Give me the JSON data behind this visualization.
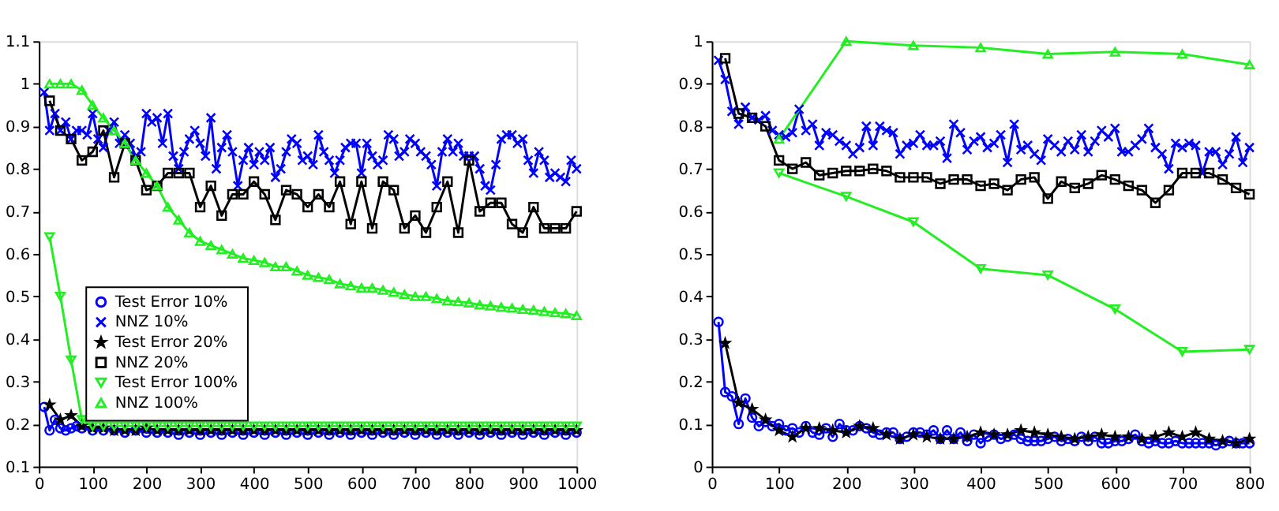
{
  "chart_data": [
    {
      "type": "line",
      "xlim": [
        0,
        1000
      ],
      "ylim": [
        0.1,
        1.1
      ],
      "xticks": [
        0,
        100,
        200,
        300,
        400,
        500,
        600,
        700,
        800,
        900,
        1000
      ],
      "yticks": [
        0.1,
        0.2,
        0.3,
        0.4,
        0.5,
        0.6,
        0.7,
        0.8,
        0.9,
        1,
        1.1
      ],
      "grid": false,
      "legend": "bottom left",
      "series": [
        {
          "name": "Test Error 10%",
          "color": "#0000ff",
          "marker": "circle",
          "x": [
            10,
            20,
            30,
            40,
            50,
            60,
            70,
            80,
            100,
            120,
            140,
            160,
            180,
            200,
            220,
            240,
            260,
            280,
            300,
            320,
            340,
            360,
            380,
            400,
            420,
            440,
            460,
            480,
            500,
            520,
            540,
            560,
            580,
            600,
            620,
            640,
            660,
            680,
            700,
            720,
            740,
            760,
            780,
            800,
            820,
            840,
            860,
            880,
            900,
            920,
            940,
            960,
            980,
            1000
          ],
          "values": [
            0.24,
            0.185,
            0.21,
            0.19,
            0.185,
            0.19,
            0.195,
            0.19,
            0.185,
            0.185,
            0.185,
            0.18,
            0.185,
            0.18,
            0.18,
            0.18,
            0.175,
            0.18,
            0.175,
            0.18,
            0.175,
            0.18,
            0.175,
            0.18,
            0.175,
            0.18,
            0.175,
            0.18,
            0.175,
            0.18,
            0.175,
            0.18,
            0.175,
            0.18,
            0.175,
            0.18,
            0.175,
            0.18,
            0.175,
            0.18,
            0.175,
            0.18,
            0.175,
            0.18,
            0.175,
            0.18,
            0.175,
            0.18,
            0.175,
            0.18,
            0.175,
            0.18,
            0.175,
            0.18
          ]
        },
        {
          "name": "NNZ 10%",
          "color": "#0000ff",
          "marker": "cross",
          "x": [
            10,
            20,
            30,
            40,
            50,
            60,
            70,
            80,
            90,
            100,
            110,
            120,
            130,
            140,
            150,
            160,
            170,
            180,
            190,
            200,
            210,
            220,
            230,
            240,
            250,
            260,
            270,
            280,
            290,
            300,
            310,
            320,
            330,
            340,
            350,
            360,
            370,
            380,
            390,
            400,
            410,
            420,
            430,
            440,
            450,
            460,
            470,
            480,
            490,
            500,
            510,
            520,
            530,
            540,
            550,
            560,
            570,
            580,
            590,
            600,
            610,
            620,
            630,
            640,
            650,
            660,
            670,
            680,
            690,
            700,
            710,
            720,
            730,
            740,
            750,
            760,
            770,
            780,
            790,
            800,
            810,
            820,
            830,
            840,
            850,
            860,
            870,
            880,
            890,
            900,
            910,
            920,
            930,
            940,
            950,
            960,
            970,
            980,
            990,
            1000
          ],
          "values": [
            0.98,
            0.89,
            0.93,
            0.89,
            0.91,
            0.87,
            0.89,
            0.89,
            0.88,
            0.93,
            0.87,
            0.85,
            0.89,
            0.91,
            0.86,
            0.88,
            0.86,
            0.83,
            0.84,
            0.93,
            0.91,
            0.92,
            0.86,
            0.93,
            0.83,
            0.8,
            0.84,
            0.87,
            0.89,
            0.86,
            0.83,
            0.92,
            0.8,
            0.85,
            0.88,
            0.84,
            0.76,
            0.82,
            0.85,
            0.81,
            0.84,
            0.82,
            0.85,
            0.78,
            0.8,
            0.84,
            0.87,
            0.86,
            0.82,
            0.83,
            0.81,
            0.88,
            0.84,
            0.82,
            0.79,
            0.82,
            0.85,
            0.86,
            0.86,
            0.79,
            0.86,
            0.83,
            0.81,
            0.82,
            0.88,
            0.87,
            0.83,
            0.84,
            0.87,
            0.86,
            0.84,
            0.83,
            0.81,
            0.76,
            0.84,
            0.87,
            0.84,
            0.86,
            0.83,
            0.83,
            0.83,
            0.8,
            0.76,
            0.75,
            0.81,
            0.87,
            0.88,
            0.88,
            0.86,
            0.87,
            0.82,
            0.79,
            0.84,
            0.82,
            0.78,
            0.79,
            0.78,
            0.77,
            0.82,
            0.8
          ]
        },
        {
          "name": "Test Error 20%",
          "color": "#000000",
          "marker": "star",
          "x": [
            20,
            40,
            60,
            80,
            100,
            120,
            140,
            160,
            180,
            200,
            220,
            240,
            260,
            280,
            300,
            320,
            340,
            360,
            380,
            400,
            420,
            440,
            460,
            480,
            500,
            520,
            540,
            560,
            580,
            600,
            620,
            640,
            660,
            680,
            700,
            720,
            740,
            760,
            780,
            800,
            820,
            840,
            860,
            880,
            900,
            920,
            940,
            960,
            980,
            1000
          ],
          "values": [
            0.245,
            0.21,
            0.22,
            0.195,
            0.19,
            0.19,
            0.185,
            0.185,
            0.185,
            0.19,
            0.185,
            0.185,
            0.185,
            0.185,
            0.185,
            0.185,
            0.185,
            0.185,
            0.185,
            0.185,
            0.185,
            0.185,
            0.185,
            0.185,
            0.185,
            0.185,
            0.185,
            0.185,
            0.185,
            0.185,
            0.185,
            0.185,
            0.185,
            0.185,
            0.185,
            0.185,
            0.185,
            0.185,
            0.185,
            0.185,
            0.185,
            0.185,
            0.185,
            0.185,
            0.185,
            0.185,
            0.185,
            0.185,
            0.185,
            0.185
          ]
        },
        {
          "name": "NNZ 20%",
          "color": "#000000",
          "marker": "square",
          "x": [
            20,
            40,
            60,
            80,
            100,
            120,
            140,
            160,
            180,
            200,
            220,
            240,
            260,
            280,
            300,
            320,
            340,
            360,
            380,
            400,
            420,
            440,
            460,
            480,
            500,
            520,
            540,
            560,
            580,
            600,
            620,
            640,
            660,
            680,
            700,
            720,
            740,
            760,
            780,
            800,
            820,
            840,
            860,
            880,
            900,
            920,
            940,
            960,
            980,
            1000
          ],
          "values": [
            0.96,
            0.89,
            0.87,
            0.82,
            0.84,
            0.89,
            0.78,
            0.86,
            0.82,
            0.75,
            0.76,
            0.79,
            0.79,
            0.79,
            0.71,
            0.76,
            0.69,
            0.74,
            0.74,
            0.77,
            0.74,
            0.68,
            0.75,
            0.74,
            0.71,
            0.74,
            0.71,
            0.77,
            0.67,
            0.77,
            0.66,
            0.77,
            0.75,
            0.66,
            0.69,
            0.65,
            0.71,
            0.77,
            0.65,
            0.82,
            0.7,
            0.72,
            0.72,
            0.67,
            0.65,
            0.71,
            0.66,
            0.66,
            0.66,
            0.7
          ]
        },
        {
          "name": "Test Error 100%",
          "color": "#22ee22",
          "marker": "triangle-down",
          "x": [
            20,
            40,
            60,
            80,
            100,
            120,
            140,
            160,
            180,
            200,
            220,
            240,
            260,
            280,
            300,
            320,
            340,
            360,
            380,
            400,
            420,
            440,
            460,
            480,
            500,
            520,
            540,
            560,
            580,
            600,
            620,
            640,
            660,
            680,
            700,
            720,
            740,
            760,
            780,
            800,
            820,
            840,
            860,
            880,
            900,
            920,
            940,
            960,
            980,
            1000
          ],
          "values": [
            0.64,
            0.5,
            0.35,
            0.21,
            0.195,
            0.195,
            0.195,
            0.195,
            0.195,
            0.195,
            0.195,
            0.195,
            0.195,
            0.195,
            0.195,
            0.195,
            0.195,
            0.195,
            0.195,
            0.195,
            0.195,
            0.195,
            0.195,
            0.195,
            0.195,
            0.195,
            0.195,
            0.195,
            0.195,
            0.195,
            0.195,
            0.195,
            0.195,
            0.195,
            0.195,
            0.195,
            0.195,
            0.195,
            0.195,
            0.195,
            0.195,
            0.195,
            0.195,
            0.195,
            0.195,
            0.195,
            0.195,
            0.195,
            0.195,
            0.195
          ]
        },
        {
          "name": "NNZ 100%",
          "color": "#22ee22",
          "marker": "triangle",
          "x": [
            20,
            40,
            60,
            80,
            100,
            120,
            140,
            160,
            180,
            200,
            220,
            240,
            260,
            280,
            300,
            320,
            340,
            360,
            380,
            400,
            420,
            440,
            460,
            480,
            500,
            520,
            540,
            560,
            580,
            600,
            620,
            640,
            660,
            680,
            700,
            720,
            740,
            760,
            780,
            800,
            820,
            840,
            860,
            880,
            900,
            920,
            940,
            960,
            980,
            1000
          ],
          "values": [
            1.0,
            1.0,
            1.0,
            0.985,
            0.95,
            0.92,
            0.89,
            0.86,
            0.82,
            0.79,
            0.76,
            0.71,
            0.68,
            0.65,
            0.63,
            0.62,
            0.61,
            0.6,
            0.59,
            0.585,
            0.58,
            0.57,
            0.57,
            0.56,
            0.55,
            0.545,
            0.54,
            0.53,
            0.525,
            0.52,
            0.52,
            0.515,
            0.51,
            0.505,
            0.5,
            0.5,
            0.495,
            0.49,
            0.488,
            0.485,
            0.48,
            0.478,
            0.475,
            0.473,
            0.47,
            0.468,
            0.465,
            0.462,
            0.46,
            0.455
          ]
        }
      ]
    },
    {
      "type": "line",
      "xlim": [
        0,
        800
      ],
      "ylim": [
        0,
        1
      ],
      "xticks": [
        0,
        100,
        200,
        300,
        400,
        500,
        600,
        700,
        800
      ],
      "yticks": [
        0,
        0.1,
        0.2,
        0.3,
        0.4,
        0.5,
        0.6,
        0.7,
        0.8,
        0.9,
        1
      ],
      "grid": false,
      "series": [
        {
          "color": "#0000ff",
          "marker": "circle",
          "x": [
            10,
            20,
            30,
            40,
            50,
            60,
            70,
            80,
            90,
            100,
            110,
            120,
            130,
            140,
            150,
            160,
            170,
            180,
            190,
            200,
            210,
            220,
            230,
            240,
            250,
            260,
            270,
            280,
            290,
            300,
            310,
            320,
            330,
            340,
            350,
            360,
            370,
            380,
            390,
            400,
            410,
            420,
            430,
            440,
            450,
            460,
            470,
            480,
            490,
            500,
            510,
            520,
            530,
            540,
            550,
            560,
            570,
            580,
            590,
            600,
            610,
            620,
            630,
            640,
            650,
            660,
            670,
            680,
            690,
            700,
            710,
            720,
            730,
            740,
            750,
            760,
            770,
            780,
            790,
            800
          ],
          "values": [
            0.34,
            0.175,
            0.165,
            0.1,
            0.16,
            0.115,
            0.095,
            0.105,
            0.095,
            0.1,
            0.085,
            0.09,
            0.08,
            0.095,
            0.08,
            0.075,
            0.09,
            0.07,
            0.1,
            0.085,
            0.085,
            0.095,
            0.09,
            0.08,
            0.075,
            0.08,
            0.08,
            0.065,
            0.07,
            0.08,
            0.08,
            0.075,
            0.085,
            0.065,
            0.085,
            0.065,
            0.08,
            0.06,
            0.075,
            0.055,
            0.07,
            0.075,
            0.065,
            0.07,
            0.075,
            0.065,
            0.06,
            0.06,
            0.06,
            0.065,
            0.07,
            0.06,
            0.065,
            0.06,
            0.07,
            0.06,
            0.07,
            0.055,
            0.055,
            0.06,
            0.06,
            0.065,
            0.075,
            0.06,
            0.055,
            0.06,
            0.055,
            0.055,
            0.06,
            0.055,
            0.055,
            0.055,
            0.055,
            0.055,
            0.05,
            0.055,
            0.06,
            0.055,
            0.055,
            0.055
          ]
        },
        {
          "color": "#0000ff",
          "marker": "cross",
          "x": [
            10,
            20,
            30,
            40,
            50,
            60,
            70,
            80,
            90,
            100,
            110,
            120,
            130,
            140,
            150,
            160,
            170,
            180,
            190,
            200,
            210,
            220,
            230,
            240,
            250,
            260,
            270,
            280,
            290,
            300,
            310,
            320,
            330,
            340,
            350,
            360,
            370,
            380,
            390,
            400,
            410,
            420,
            430,
            440,
            450,
            460,
            470,
            480,
            490,
            500,
            510,
            520,
            530,
            540,
            550,
            560,
            570,
            580,
            590,
            600,
            610,
            620,
            630,
            640,
            650,
            660,
            670,
            680,
            690,
            700,
            710,
            720,
            730,
            740,
            750,
            760,
            770,
            780,
            790,
            800
          ],
          "values": [
            0.955,
            0.91,
            0.835,
            0.805,
            0.845,
            0.82,
            0.815,
            0.825,
            0.79,
            0.78,
            0.775,
            0.785,
            0.84,
            0.79,
            0.805,
            0.755,
            0.785,
            0.78,
            0.765,
            0.755,
            0.735,
            0.75,
            0.8,
            0.755,
            0.8,
            0.79,
            0.785,
            0.735,
            0.755,
            0.76,
            0.78,
            0.755,
            0.755,
            0.765,
            0.725,
            0.805,
            0.785,
            0.745,
            0.765,
            0.775,
            0.75,
            0.76,
            0.78,
            0.715,
            0.805,
            0.745,
            0.755,
            0.735,
            0.72,
            0.77,
            0.755,
            0.74,
            0.765,
            0.745,
            0.78,
            0.74,
            0.765,
            0.79,
            0.775,
            0.795,
            0.74,
            0.74,
            0.755,
            0.77,
            0.795,
            0.75,
            0.735,
            0.7,
            0.76,
            0.75,
            0.76,
            0.755,
            0.69,
            0.74,
            0.74,
            0.71,
            0.735,
            0.775,
            0.715,
            0.75
          ]
        },
        {
          "color": "#000000",
          "marker": "star",
          "x": [
            20,
            40,
            60,
            80,
            100,
            120,
            140,
            160,
            180,
            200,
            220,
            240,
            260,
            280,
            300,
            320,
            340,
            360,
            380,
            400,
            420,
            440,
            460,
            480,
            500,
            520,
            540,
            560,
            580,
            600,
            620,
            640,
            660,
            680,
            700,
            720,
            740,
            760,
            780,
            800
          ],
          "values": [
            0.29,
            0.15,
            0.135,
            0.11,
            0.085,
            0.07,
            0.09,
            0.09,
            0.085,
            0.08,
            0.095,
            0.09,
            0.075,
            0.065,
            0.075,
            0.07,
            0.065,
            0.065,
            0.07,
            0.08,
            0.075,
            0.075,
            0.085,
            0.08,
            0.075,
            0.07,
            0.065,
            0.07,
            0.075,
            0.07,
            0.07,
            0.065,
            0.07,
            0.08,
            0.07,
            0.08,
            0.065,
            0.06,
            0.055,
            0.065
          ]
        },
        {
          "color": "#000000",
          "marker": "square",
          "x": [
            20,
            40,
            60,
            80,
            100,
            120,
            140,
            160,
            180,
            200,
            220,
            240,
            260,
            280,
            300,
            320,
            340,
            360,
            380,
            400,
            420,
            440,
            460,
            480,
            500,
            520,
            540,
            560,
            580,
            600,
            620,
            640,
            660,
            680,
            700,
            720,
            740,
            760,
            780,
            800
          ],
          "values": [
            0.96,
            0.83,
            0.82,
            0.8,
            0.72,
            0.7,
            0.715,
            0.685,
            0.69,
            0.695,
            0.695,
            0.7,
            0.695,
            0.68,
            0.68,
            0.68,
            0.665,
            0.675,
            0.675,
            0.66,
            0.665,
            0.65,
            0.675,
            0.68,
            0.63,
            0.67,
            0.655,
            0.665,
            0.685,
            0.675,
            0.66,
            0.65,
            0.62,
            0.65,
            0.69,
            0.69,
            0.69,
            0.675,
            0.655,
            0.64
          ]
        },
        {
          "color": "#22ee22",
          "marker": "triangle-down",
          "x": [
            100,
            200,
            300,
            400,
            500,
            600,
            700,
            800
          ],
          "values": [
            0.69,
            0.635,
            0.575,
            0.465,
            0.45,
            0.37,
            0.27,
            0.275
          ]
        },
        {
          "color": "#22ee22",
          "marker": "triangle",
          "x": [
            100,
            200,
            300,
            400,
            500,
            600,
            700,
            800
          ],
          "values": [
            0.77,
            1.0,
            0.99,
            0.985,
            0.97,
            0.975,
            0.97,
            0.945
          ]
        }
      ]
    }
  ]
}
